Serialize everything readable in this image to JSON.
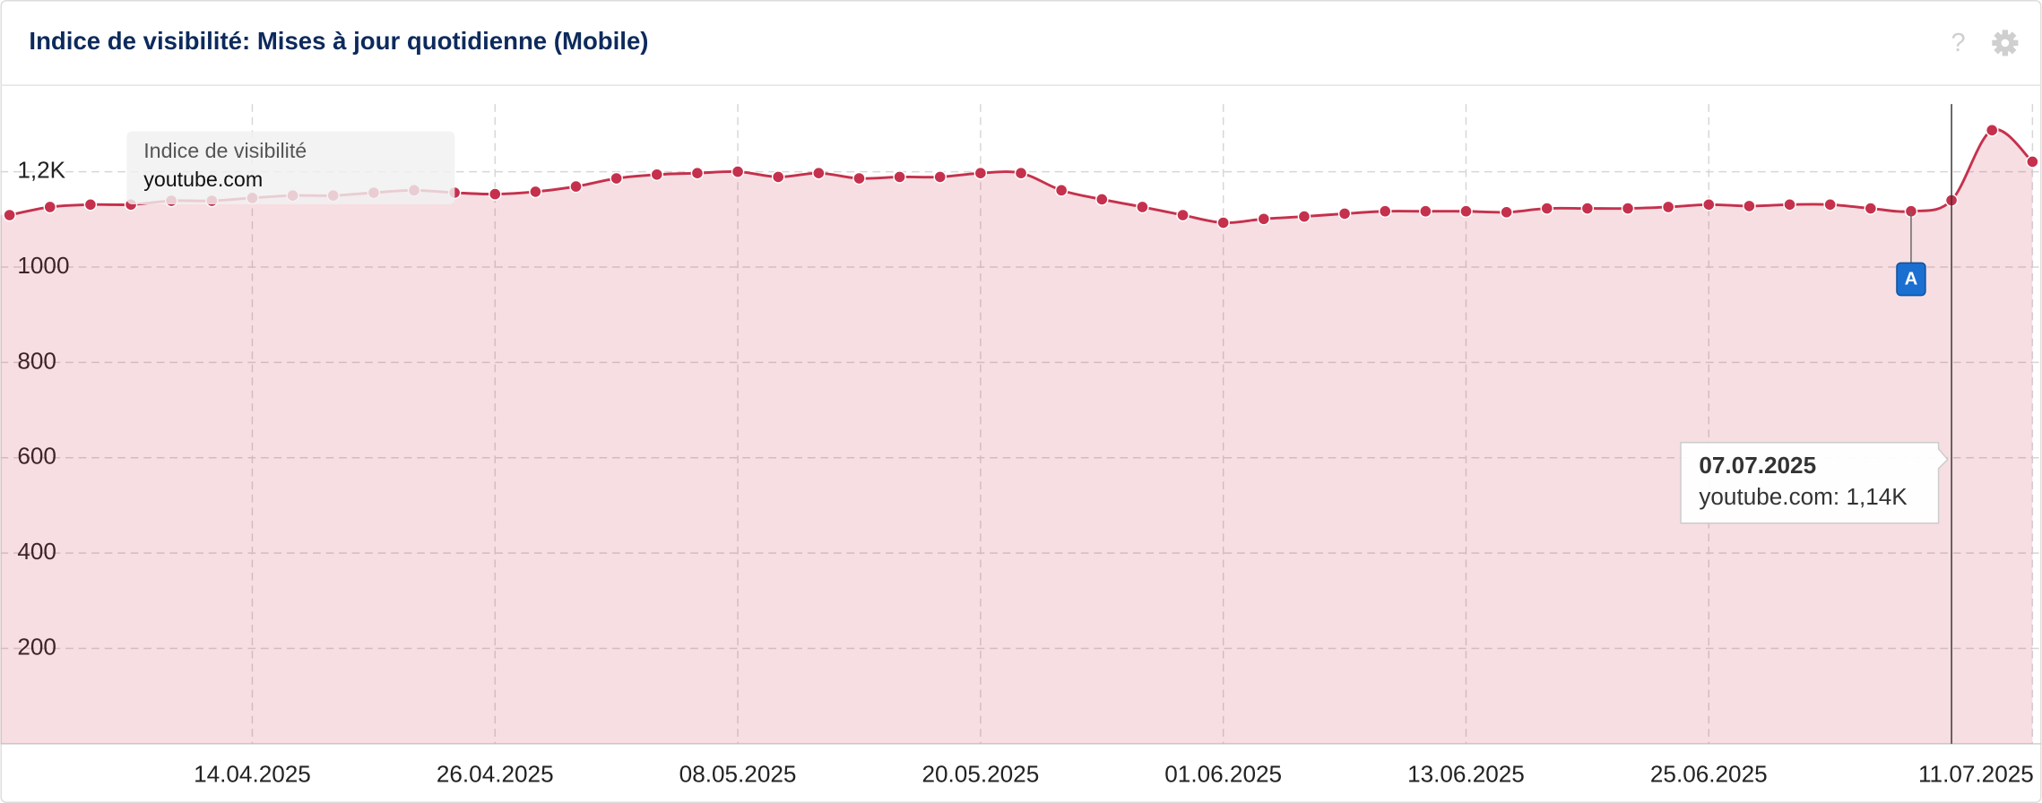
{
  "chart_data": {
    "type": "line",
    "title": "Indice de visibilité: Mises à jour quotidienne (Mobile)",
    "legend_title": "Indice de visibilité",
    "x": [
      "02.04.2025",
      "04.04.2025",
      "06.04.2025",
      "08.04.2025",
      "10.04.2025",
      "12.04.2025",
      "14.04.2025",
      "16.04.2025",
      "18.04.2025",
      "20.04.2025",
      "22.04.2025",
      "24.04.2025",
      "26.04.2025",
      "28.04.2025",
      "30.04.2025",
      "02.05.2025",
      "04.05.2025",
      "06.05.2025",
      "08.05.2025",
      "10.05.2025",
      "12.05.2025",
      "14.05.2025",
      "16.05.2025",
      "18.05.2025",
      "20.05.2025",
      "22.05.2025",
      "24.05.2025",
      "26.05.2025",
      "28.05.2025",
      "30.05.2025",
      "01.06.2025",
      "03.06.2025",
      "05.06.2025",
      "07.06.2025",
      "09.06.2025",
      "11.06.2025",
      "13.06.2025",
      "15.06.2025",
      "17.06.2025",
      "19.06.2025",
      "21.06.2025",
      "23.06.2025",
      "25.06.2025",
      "27.06.2025",
      "29.06.2025",
      "01.07.2025",
      "03.07.2025",
      "05.07.2025",
      "07.07.2025",
      "09.07.2025",
      "11.07.2025"
    ],
    "series": [
      {
        "name": "youtube.com",
        "color": "#c5314d",
        "values": [
          1109,
          1126,
          1131,
          1131,
          1139,
          1139,
          1145,
          1150,
          1150,
          1156,
          1161,
          1156,
          1153,
          1158,
          1169,
          1186,
          1194,
          1197,
          1200,
          1189,
          1197,
          1186,
          1189,
          1189,
          1197,
          1197,
          1161,
          1142,
          1126,
          1109,
          1093,
          1101,
          1106,
          1112,
          1117,
          1117,
          1117,
          1115,
          1123,
          1123,
          1123,
          1126,
          1131,
          1128,
          1131,
          1131,
          1123,
          1117,
          1140,
          1287,
          1221
        ]
      }
    ],
    "xlim": [
      "02.04.2025",
      "11.07.2025"
    ],
    "xticks": [
      "14.04.2025",
      "26.04.2025",
      "08.05.2025",
      "20.05.2025",
      "01.06.2025",
      "13.06.2025",
      "25.06.2025",
      "11.07.2025"
    ],
    "ylim": [
      0,
      1380
    ],
    "yticks": [
      200,
      400,
      600,
      800,
      1000,
      {
        "value": 1200,
        "label": "1,2K"
      }
    ],
    "grid": true,
    "annotation": {
      "x": "05.07.2025",
      "label": "A"
    },
    "tooltip": {
      "x": "07.07.2025",
      "text": "youtube.com: 1,14K"
    }
  }
}
